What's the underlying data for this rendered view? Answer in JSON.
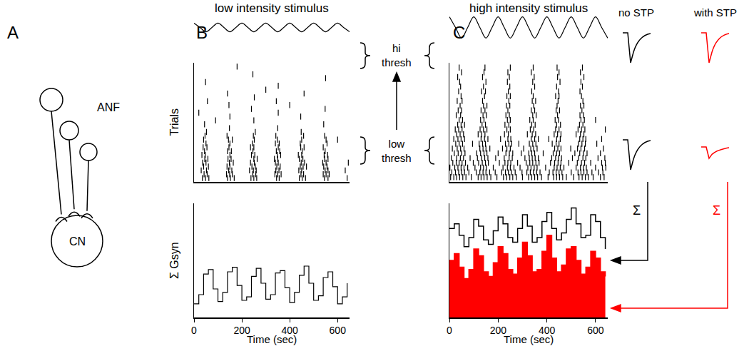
{
  "panel_labels": [
    "A",
    "B",
    "C"
  ],
  "diagram": {
    "anf_label": "ANF",
    "cn_label": "CN"
  },
  "threshold_labels": {
    "high": [
      "hi",
      "thresh"
    ],
    "low": [
      "low",
      "thresh"
    ]
  },
  "sum_symbol": "Σ",
  "chart_data": [
    {
      "type": "line",
      "title": "low intensity stimulus",
      "line_style": "smooth",
      "color": "#000000",
      "tick_labels": false,
      "x": [
        0,
        25,
        50,
        75,
        100,
        125,
        150,
        175,
        200,
        225,
        250,
        275,
        300,
        325,
        350,
        375,
        400,
        425,
        450,
        475,
        500,
        525,
        550,
        575,
        600,
        625,
        650
      ],
      "values": [
        0.45,
        0,
        -0.45,
        0,
        0.45,
        0,
        -0.45,
        0,
        0.45,
        0,
        -0.45,
        0,
        0.45,
        0,
        -0.45,
        0,
        0.45,
        0,
        -0.45,
        0,
        0.45,
        0,
        -0.45,
        0,
        0.45,
        0,
        -0.45
      ],
      "xlim": [
        0,
        650
      ],
      "ylim": [
        -1,
        1
      ]
    },
    {
      "type": "scatter",
      "marker": "line-ns",
      "color": "#000000",
      "y_label": "Trials",
      "tick_labels": false,
      "xlim": [
        0,
        650
      ],
      "ylim": [
        0,
        31
      ],
      "trials": [
        [
          35,
          48,
          62,
          140,
          152,
          168,
          238,
          250,
          262,
          345,
          356,
          440,
          452,
          466,
          545,
          560,
          640
        ],
        [
          42,
          55,
          136,
          149,
          160,
          245,
          258,
          338,
          350,
          364,
          447,
          458,
          540,
          552,
          565
        ],
        [
          30,
          52,
          145,
          158,
          232,
          248,
          260,
          342,
          355,
          438,
          450,
          548,
          560,
          632
        ],
        [
          40,
          60,
          138,
          150,
          242,
          256,
          346,
          360,
          444,
          456,
          470,
          542,
          556
        ],
        [
          36,
          50,
          148,
          164,
          236,
          252,
          340,
          352,
          448,
          462,
          538,
          552,
          645
        ],
        [
          45,
          58,
          142,
          155,
          250,
          264,
          336,
          350,
          440,
          455,
          546,
          560
        ],
        [
          33,
          47,
          150,
          240,
          254,
          348,
          362,
          436,
          450,
          544,
          558
        ],
        [
          44,
          140,
          156,
          246,
          344,
          358,
          452,
          548
        ],
        [
          38,
          54,
          146,
          236,
          250,
          352,
          446,
          460,
          540
        ],
        [
          50,
          150,
          244,
          340,
          356,
          444,
          556
        ],
        [
          40,
          144,
          160,
          252,
          348,
          450,
          552,
          600
        ],
        [
          46,
          138,
          248,
          342,
          458,
          546
        ],
        [
          52,
          256,
          448
        ],
        [
          148,
          350
        ],
        [
          44,
          542
        ],
        [
          90,
          250
        ],
        [
          150,
          446
        ],
        [
          20,
          352
        ],
        [
          240,
          548
        ],
        [
          146,
          400
        ],
        [
          56,
          344
        ],
        [
          252
        ],
        [
          140,
          460
        ],
        [
          300
        ],
        [
          352
        ],
        [
          48
        ],
        [
          550
        ],
        [
          246
        ],
        [],
        [
          180
        ]
      ]
    },
    {
      "type": "line",
      "line_style": "step",
      "color": "#000000",
      "y_label": "Σ Gsyn",
      "x_label": "Time (sec)",
      "tick_labels": "x",
      "x": [
        0,
        20,
        40,
        60,
        80,
        100,
        120,
        140,
        160,
        180,
        200,
        220,
        240,
        260,
        280,
        300,
        320,
        340,
        360,
        380,
        400,
        420,
        440,
        460,
        480,
        500,
        520,
        540,
        560,
        580,
        600,
        620,
        640
      ],
      "values": [
        0.12,
        0.2,
        0.38,
        0.42,
        0.25,
        0.14,
        0.22,
        0.4,
        0.44,
        0.28,
        0.15,
        0.18,
        0.36,
        0.43,
        0.3,
        0.16,
        0.2,
        0.39,
        0.41,
        0.26,
        0.13,
        0.22,
        0.37,
        0.45,
        0.3,
        0.15,
        0.19,
        0.35,
        0.4,
        0.27,
        0.12,
        0.18,
        0.3
      ],
      "xlim": [
        0,
        650
      ],
      "xticks": [
        0,
        200,
        400,
        600
      ],
      "ylim": [
        0,
        1
      ]
    },
    {
      "type": "line",
      "title": "high intensity stimulus",
      "line_style": "smooth",
      "color": "#000000",
      "tick_labels": false,
      "x": [
        0,
        25,
        50,
        75,
        100,
        125,
        150,
        175,
        200,
        225,
        250,
        275,
        300,
        325,
        350,
        375,
        400,
        425,
        450,
        475,
        500,
        525,
        550,
        575,
        600,
        625,
        650
      ],
      "values": [
        0.9,
        0,
        -0.9,
        0,
        0.9,
        0,
        -0.9,
        0,
        0.9,
        0,
        -0.9,
        0,
        0.9,
        0,
        -0.9,
        0,
        0.9,
        0,
        -0.9,
        0,
        0.9,
        0,
        -0.9,
        0,
        0.9,
        0,
        -0.9
      ],
      "xlim": [
        0,
        650
      ],
      "ylim": [
        -1,
        1
      ]
    },
    {
      "type": "scatter",
      "marker": "line-ns",
      "color": "#000000",
      "tick_labels": false,
      "xlim": [
        0,
        650
      ],
      "ylim": [
        0,
        25
      ],
      "trials": [
        [
          5,
          18,
          30,
          42,
          55,
          68,
          90,
          118,
          130,
          142,
          155,
          170,
          195,
          222,
          235,
          248,
          260,
          275,
          300,
          325,
          338,
          350,
          362,
          378,
          405,
          428,
          440,
          452,
          465,
          480,
          510,
          532,
          545,
          558,
          570,
          590,
          620,
          635
        ],
        [
          10,
          25,
          38,
          50,
          62,
          80,
          110,
          125,
          138,
          150,
          165,
          188,
          215,
          230,
          242,
          255,
          270,
          298,
          318,
          332,
          345,
          358,
          372,
          410,
          425,
          438,
          450,
          462,
          500,
          528,
          540,
          552,
          565,
          585,
          612,
          630
        ],
        [
          2,
          22,
          35,
          48,
          60,
          75,
          105,
          128,
          140,
          152,
          180,
          220,
          238,
          250,
          265,
          290,
          322,
          335,
          348,
          360,
          395,
          430,
          442,
          455,
          470,
          520,
          538,
          550,
          562,
          600,
          628,
          642
        ],
        [
          14,
          28,
          40,
          52,
          66,
          98,
          120,
          135,
          148,
          160,
          205,
          228,
          240,
          252,
          280,
          315,
          330,
          342,
          355,
          368,
          415,
          432,
          446,
          458,
          490,
          525,
          542,
          555,
          580,
          625,
          640
        ],
        [
          8,
          30,
          45,
          58,
          85,
          115,
          132,
          145,
          158,
          190,
          225,
          245,
          258,
          310,
          328,
          340,
          352,
          365,
          420,
          436,
          448,
          460,
          505,
          530,
          548,
          560,
          610,
          638
        ],
        [
          20,
          36,
          50,
          64,
          112,
          128,
          142,
          154,
          200,
          232,
          246,
          260,
          295,
          326,
          338,
          350,
          385,
          426,
          440,
          452,
          515,
          535,
          550,
          565,
          620
        ],
        [
          12,
          32,
          46,
          60,
          125,
          138,
          150,
          166,
          218,
          236,
          250,
          305,
          334,
          346,
          360,
          432,
          445,
          458,
          498,
          526,
          540,
          555,
          632
        ],
        [
          26,
          40,
          54,
          95,
          122,
          136,
          148,
          230,
          244,
          256,
          285,
          328,
          342,
          355,
          422,
          438,
          450,
          530,
          544,
          558,
          605
        ],
        [
          18,
          35,
          48,
          62,
          130,
          144,
          158,
          210,
          240,
          252,
          336,
          350,
          365,
          408,
          440,
          455,
          535,
          548,
          560,
          625
        ],
        [
          30,
          44,
          58,
          118,
          132,
          146,
          226,
          242,
          320,
          340,
          354,
          430,
          444,
          458,
          520,
          538,
          552
        ],
        [
          24,
          38,
          52,
          126,
          140,
          154,
          236,
          250,
          332,
          346,
          436,
          450,
          528,
          542,
          556,
          640
        ],
        [
          34,
          48,
          62,
          134,
          148,
          228,
          244,
          338,
          352,
          440,
          456,
          534,
          548
        ],
        [
          40,
          54,
          128,
          142,
          238,
          250,
          330,
          344,
          434,
          448,
          540,
          554,
          600
        ],
        [
          28,
          46,
          138,
          152,
          232,
          246,
          342,
          356,
          444,
          536,
          550
        ],
        [
          36,
          50,
          130,
          146,
          240,
          336,
          350,
          438,
          452,
          544
        ],
        [
          44,
          140,
          154,
          234,
          248,
          346,
          442,
          538,
          552
        ],
        [
          32,
          52,
          136,
          244,
          340,
          354,
          446,
          548
        ],
        [
          48,
          144,
          236,
          250,
          344,
          436,
          450,
          542
        ],
        [
          38,
          132,
          148,
          242,
          338,
          448,
          536
        ],
        [
          46,
          140,
          248,
          350,
          440,
          546
        ],
        [
          42,
          150,
          238,
          342,
          454,
          540
        ],
        [
          34,
          136,
          246,
          348,
          444,
          552
        ],
        [
          50,
          142,
          240,
          336,
          450,
          538
        ],
        [
          40,
          146,
          250,
          344,
          442,
          546
        ]
      ]
    },
    {
      "type": "line",
      "line_style": "step",
      "x_label": "Time (sec)",
      "tick_labels": "x",
      "x": [
        0,
        20,
        40,
        60,
        80,
        100,
        120,
        140,
        160,
        180,
        200,
        220,
        240,
        260,
        280,
        300,
        320,
        340,
        360,
        380,
        400,
        420,
        440,
        460,
        480,
        500,
        520,
        540,
        560,
        580,
        600,
        620,
        640
      ],
      "series": [
        {
          "name": "with STP",
          "color": "#ff0000",
          "type": "area",
          "values": [
            0.5,
            0.56,
            0.44,
            0.34,
            0.42,
            0.6,
            0.54,
            0.4,
            0.36,
            0.48,
            0.62,
            0.56,
            0.42,
            0.38,
            0.52,
            0.66,
            0.54,
            0.4,
            0.42,
            0.58,
            0.72,
            0.52,
            0.4,
            0.46,
            0.6,
            0.62,
            0.5,
            0.38,
            0.44,
            0.58,
            0.52,
            0.4,
            0.36
          ]
        },
        {
          "name": "no STP",
          "color": "#000000",
          "type": "line",
          "values": [
            0.78,
            0.82,
            0.72,
            0.62,
            0.7,
            0.86,
            0.8,
            0.68,
            0.64,
            0.76,
            0.88,
            0.82,
            0.7,
            0.66,
            0.78,
            0.9,
            0.8,
            0.66,
            0.7,
            0.84,
            0.92,
            0.78,
            0.68,
            0.74,
            0.86,
            0.96,
            0.82,
            0.7,
            0.72,
            0.9,
            0.84,
            0.7,
            0.6
          ]
        }
      ],
      "xlim": [
        0,
        650
      ],
      "xticks": [
        0,
        200,
        400,
        600
      ],
      "ylim": [
        0,
        1
      ]
    }
  ]
}
